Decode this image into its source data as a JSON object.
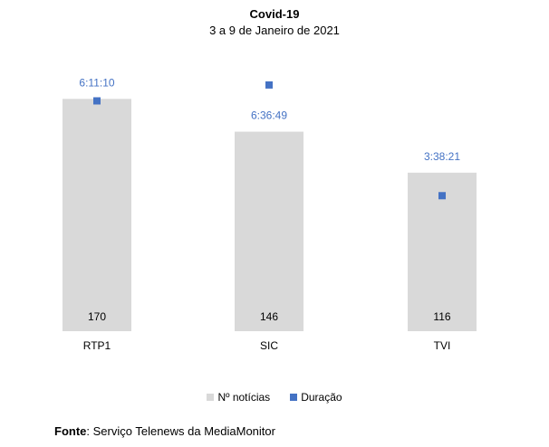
{
  "chart_data": {
    "type": "bar",
    "title": "Covid-19",
    "subtitle": "3 a 9 de Janeiro de 2021",
    "categories": [
      "RTP1",
      "SIC",
      "TVI"
    ],
    "series": [
      {
        "name": "Nº notícias",
        "kind": "bar",
        "color": "#d9d9d9",
        "values": [
          170,
          146,
          116
        ],
        "labels": [
          "170",
          "146",
          "116"
        ]
      },
      {
        "name": "Duração",
        "kind": "marker",
        "color": "#4472c4",
        "values_seconds": [
          22270,
          23809,
          13101
        ],
        "labels": [
          "6:11:10",
          "6:36:49",
          "3:38:21"
        ]
      }
    ],
    "ylim_bars": [
      0,
      200
    ],
    "ylim_duration_seconds": [
      0,
      28000
    ],
    "legend_position": "bottom-center",
    "grid": false
  },
  "source": {
    "label": "Fonte",
    "text": ": Serviço Telenews da MediaMonitor"
  }
}
